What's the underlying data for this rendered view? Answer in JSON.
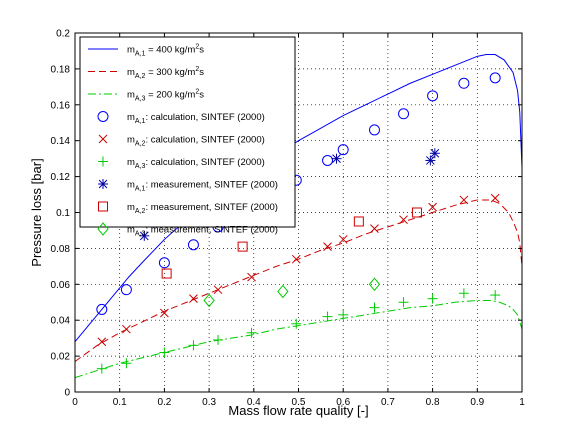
{
  "chart_data": {
    "type": "line",
    "xlabel": "Mass flow rate quality [-]",
    "ylabel": "Pressure loss [bar]",
    "xlim": [
      0,
      1
    ],
    "ylim": [
      0,
      0.2
    ],
    "xticks": [
      "0",
      "0.1",
      "0.2",
      "0.3",
      "0.4",
      "0.5",
      "0.6",
      "0.7",
      "0.8",
      "0.9",
      "1"
    ],
    "yticks": [
      "0",
      "0.02",
      "0.04",
      "0.06",
      "0.08",
      "0.1",
      "0.12",
      "0.14",
      "0.16",
      "0.18",
      "0.2"
    ],
    "grid": true,
    "legend_position": "top-left",
    "lines": [
      {
        "label_main": "m",
        "label_sub": "A,1",
        "label_value": " = 400 kg/m",
        "label_sup": "2",
        "label_unit": "s",
        "color": "#0000ff",
        "dash": "solid",
        "x": [
          0.0,
          0.02,
          0.05,
          0.08,
          0.1,
          0.12,
          0.15,
          0.2,
          0.25,
          0.3,
          0.35,
          0.4,
          0.45,
          0.5,
          0.55,
          0.6,
          0.65,
          0.7,
          0.75,
          0.8,
          0.85,
          0.88,
          0.9,
          0.92,
          0.94,
          0.96,
          0.98,
          0.99,
          0.995,
          1.0
        ],
        "y": [
          0.028,
          0.034,
          0.043,
          0.052,
          0.058,
          0.064,
          0.072,
          0.085,
          0.096,
          0.106,
          0.115,
          0.124,
          0.132,
          0.14,
          0.147,
          0.154,
          0.16,
          0.166,
          0.172,
          0.177,
          0.182,
          0.185,
          0.187,
          0.188,
          0.188,
          0.185,
          0.178,
          0.168,
          0.156,
          0.125
        ]
      },
      {
        "label_main": "m",
        "label_sub": "A,2",
        "label_value": " = 300 kg/m",
        "label_sup": "2",
        "label_unit": "s",
        "color": "#cc0000",
        "dash": "dashed",
        "x": [
          0.0,
          0.05,
          0.1,
          0.15,
          0.2,
          0.25,
          0.3,
          0.35,
          0.4,
          0.45,
          0.5,
          0.55,
          0.6,
          0.65,
          0.7,
          0.75,
          0.8,
          0.85,
          0.9,
          0.93,
          0.95,
          0.97,
          0.98,
          0.99,
          0.995,
          1.0
        ],
        "y": [
          0.017,
          0.026,
          0.033,
          0.039,
          0.045,
          0.05,
          0.055,
          0.06,
          0.065,
          0.07,
          0.074,
          0.079,
          0.083,
          0.088,
          0.092,
          0.096,
          0.1,
          0.104,
          0.107,
          0.107,
          0.105,
          0.1,
          0.095,
          0.089,
          0.083,
          0.07
        ]
      },
      {
        "label_main": "m",
        "label_sub": "A,3",
        "label_value": " = 200 kg/m",
        "label_sup": "2",
        "label_unit": "s",
        "color": "#00cc00",
        "dash": "dashdot",
        "x": [
          0.0,
          0.05,
          0.1,
          0.15,
          0.2,
          0.25,
          0.3,
          0.35,
          0.4,
          0.45,
          0.5,
          0.55,
          0.6,
          0.65,
          0.7,
          0.75,
          0.8,
          0.85,
          0.9,
          0.93,
          0.95,
          0.97,
          0.98,
          0.99,
          1.0
        ],
        "y": [
          0.008,
          0.012,
          0.016,
          0.019,
          0.022,
          0.025,
          0.028,
          0.03,
          0.032,
          0.035,
          0.037,
          0.039,
          0.041,
          0.043,
          0.045,
          0.047,
          0.048,
          0.05,
          0.051,
          0.051,
          0.05,
          0.048,
          0.046,
          0.043,
          0.035
        ]
      }
    ],
    "scatter": [
      {
        "label_main": "m",
        "label_sub": "A,1",
        "label_value": ": calculation, SINTEF (2000)",
        "marker": "circle",
        "color": "#0000ff",
        "x": [
          0.06,
          0.115,
          0.2,
          0.265,
          0.32,
          0.385,
          0.495,
          0.565,
          0.6,
          0.67,
          0.735,
          0.8,
          0.87,
          0.94
        ],
        "y": [
          0.046,
          0.057,
          0.072,
          0.082,
          0.092,
          0.104,
          0.118,
          0.129,
          0.135,
          0.146,
          0.155,
          0.165,
          0.172,
          0.175
        ]
      },
      {
        "label_main": "m",
        "label_sub": "A,2",
        "label_value": ": calculation, SINTEF (2000)",
        "marker": "x",
        "color": "#cc0000",
        "x": [
          0.06,
          0.115,
          0.2,
          0.265,
          0.32,
          0.395,
          0.495,
          0.565,
          0.6,
          0.67,
          0.735,
          0.8,
          0.87,
          0.94
        ],
        "y": [
          0.028,
          0.035,
          0.044,
          0.052,
          0.057,
          0.064,
          0.074,
          0.081,
          0.085,
          0.091,
          0.096,
          0.103,
          0.107,
          0.108
        ]
      },
      {
        "label_main": "m",
        "label_sub": "A,3",
        "label_value": ": calculation, SINTEF (2000)",
        "marker": "plus",
        "color": "#00cc00",
        "x": [
          0.06,
          0.115,
          0.2,
          0.265,
          0.32,
          0.395,
          0.495,
          0.565,
          0.6,
          0.67,
          0.735,
          0.8,
          0.87,
          0.94
        ],
        "y": [
          0.013,
          0.016,
          0.022,
          0.026,
          0.029,
          0.033,
          0.038,
          0.042,
          0.043,
          0.047,
          0.05,
          0.052,
          0.055,
          0.054
        ]
      },
      {
        "label_main": "m",
        "label_sub": "A,1",
        "label_value": ": measurement, SINTEF (2000)",
        "marker": "star",
        "color": "#0000aa",
        "x": [
          0.155,
          0.585,
          0.795,
          0.805
        ],
        "y": [
          0.087,
          0.13,
          0.129,
          0.133
        ]
      },
      {
        "label_main": "m",
        "label_sub": "A,2",
        "label_value": ": measurement, SINTEF (2000)",
        "marker": "square",
        "color": "#cc0000",
        "x": [
          0.205,
          0.375,
          0.635,
          0.765
        ],
        "y": [
          0.066,
          0.081,
          0.095,
          0.1
        ]
      },
      {
        "label_main": "m",
        "label_sub": "A,3",
        "label_value": ": measurement, SINTEF (2000)",
        "marker": "diamond",
        "color": "#00cc00",
        "x": [
          0.3,
          0.465,
          0.67
        ],
        "y": [
          0.051,
          0.056,
          0.06
        ]
      }
    ]
  }
}
